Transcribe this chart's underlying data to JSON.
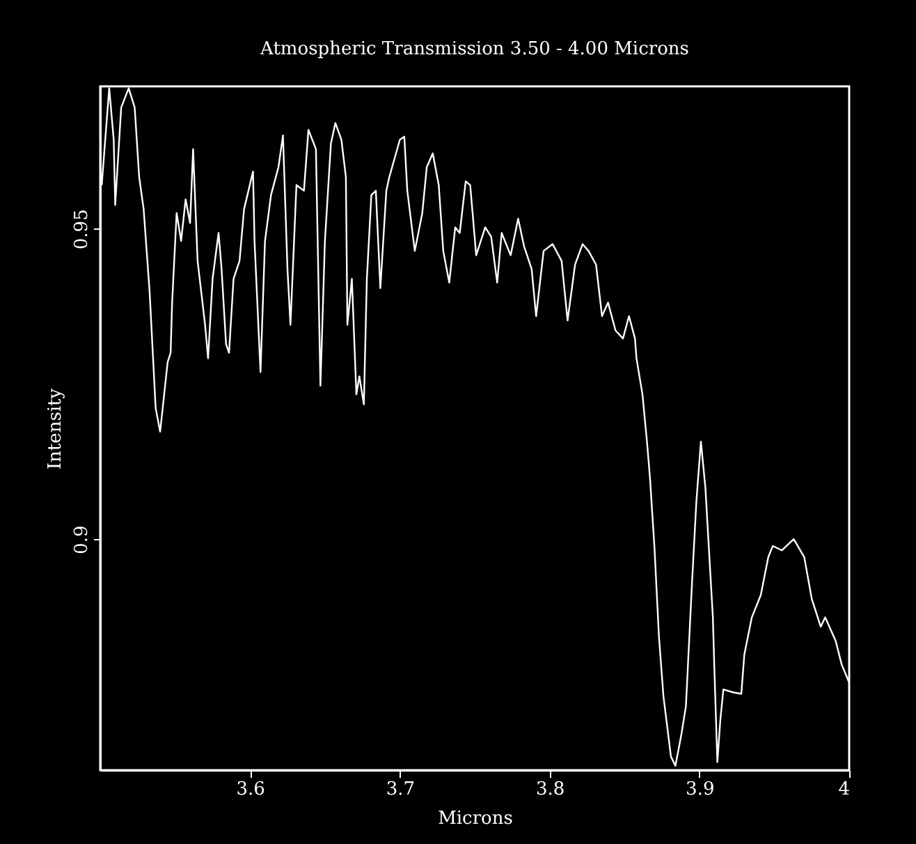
{
  "chart_data": {
    "type": "line",
    "title": "Atmospheric Transmission 3.50 - 4.00 Microns",
    "xlabel": "Microns",
    "ylabel": "Intensity",
    "xlim": [
      3.5,
      4.0
    ],
    "ylim": [
      0.8628,
      0.9729
    ],
    "xticks": [
      3.6,
      3.7,
      3.8,
      3.9,
      4
    ],
    "yticks": [
      0.9,
      0.95
    ],
    "grid": false,
    "marker": "none",
    "line_style": "solid",
    "series": [
      {
        "color": "#ffffff",
        "x": [
          3.501,
          3.506,
          3.509,
          3.51,
          3.514,
          3.519,
          3.523,
          3.526,
          3.529,
          3.533,
          3.537,
          3.54,
          3.545,
          3.547,
          3.548,
          3.551,
          3.554,
          3.557,
          3.56,
          3.562,
          3.565,
          3.57,
          3.572,
          3.575,
          3.579,
          3.581,
          3.584,
          3.586,
          3.589,
          3.593,
          3.596,
          3.602,
          3.603,
          3.607,
          3.61,
          3.614,
          3.619,
          3.622,
          3.625,
          3.627,
          3.631,
          3.636,
          3.639,
          3.644,
          3.647,
          3.65,
          3.654,
          3.657,
          3.661,
          3.664,
          3.665,
          3.668,
          3.671,
          3.673,
          3.676,
          3.678,
          3.681,
          3.684,
          3.687,
          3.691,
          3.693,
          3.7,
          3.703,
          3.705,
          3.71,
          3.715,
          3.718,
          3.722,
          3.726,
          3.729,
          3.733,
          3.737,
          3.74,
          3.744,
          3.747,
          3.751,
          3.757,
          3.761,
          3.765,
          3.768,
          3.774,
          3.779,
          3.783,
          3.788,
          3.791,
          3.796,
          3.802,
          3.808,
          3.812,
          3.817,
          3.822,
          3.826,
          3.831,
          3.835,
          3.839,
          3.844,
          3.849,
          3.853,
          3.857,
          3.858,
          3.862,
          3.865,
          3.867,
          3.87,
          3.873,
          3.876,
          3.881,
          3.884,
          3.888,
          3.891,
          3.895,
          3.898,
          3.901,
          3.904,
          3.909,
          3.91,
          3.912,
          3.914,
          3.916,
          3.923,
          3.928,
          3.93,
          3.935,
          3.941,
          3.946,
          3.949,
          3.955,
          3.963,
          3.97,
          3.975,
          3.981,
          3.984,
          3.991,
          3.995,
          4.0
        ],
        "values": [
          0.957,
          0.9726,
          0.9643,
          0.9538,
          0.9695,
          0.9726,
          0.9695,
          0.9583,
          0.9531,
          0.9397,
          0.9211,
          0.9173,
          0.9285,
          0.93,
          0.9381,
          0.9525,
          0.948,
          0.9547,
          0.9509,
          0.9628,
          0.9448,
          0.9345,
          0.9291,
          0.9419,
          0.9493,
          0.9435,
          0.9314,
          0.93,
          0.9419,
          0.9448,
          0.9531,
          0.9592,
          0.948,
          0.9269,
          0.948,
          0.9554,
          0.9599,
          0.965,
          0.9435,
          0.9345,
          0.957,
          0.9561,
          0.9659,
          0.9628,
          0.9247,
          0.948,
          0.9637,
          0.967,
          0.9643,
          0.9583,
          0.9345,
          0.9419,
          0.9233,
          0.9262,
          0.9217,
          0.9419,
          0.9554,
          0.9561,
          0.9404,
          0.9561,
          0.9583,
          0.9643,
          0.9648,
          0.9561,
          0.9464,
          0.9525,
          0.9599,
          0.9621,
          0.957,
          0.9464,
          0.9413,
          0.9502,
          0.9493,
          0.9576,
          0.957,
          0.9457,
          0.9502,
          0.9487,
          0.9413,
          0.9493,
          0.9457,
          0.9516,
          0.9471,
          0.9435,
          0.9359,
          0.9464,
          0.9475,
          0.9448,
          0.9352,
          0.9442,
          0.9475,
          0.9464,
          0.9442,
          0.9359,
          0.9381,
          0.9336,
          0.9323,
          0.9359,
          0.9323,
          0.9291,
          0.9233,
          0.9157,
          0.9099,
          0.8987,
          0.8843,
          0.8747,
          0.865,
          0.8635,
          0.8686,
          0.8731,
          0.8926,
          0.9061,
          0.9157,
          0.9083,
          0.8874,
          0.8791,
          0.8641,
          0.8709,
          0.8758,
          0.8753,
          0.8751,
          0.8814,
          0.8874,
          0.891,
          0.8971,
          0.8989,
          0.8982,
          0.9,
          0.8971,
          0.8904,
          0.8859,
          0.8874,
          0.8836,
          0.8798,
          0.8769
        ]
      }
    ]
  }
}
